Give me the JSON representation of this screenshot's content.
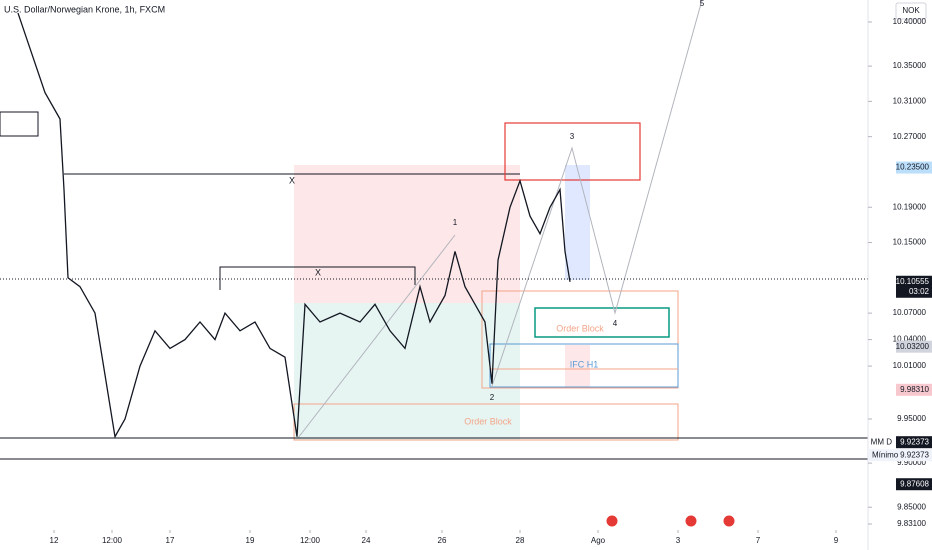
{
  "chart_data": {
    "type": "line",
    "title": "U.S. Dollar/Norwegian Krone, 1h, FXCM",
    "currency": "NOK",
    "color": "#131722",
    "x": [
      9,
      15,
      22.5,
      30,
      32,
      34,
      40,
      47.5,
      52.5,
      57.5,
      62.5,
      70,
      77.5,
      85,
      92.5,
      100,
      107.5,
      112.5,
      120,
      127.5,
      135,
      142.5,
      148.5,
      152.5,
      160,
      170,
      180,
      187.5,
      195,
      202.5,
      210,
      215,
      222.5,
      227.5,
      232.5,
      237.5,
      242.5,
      246,
      249,
      255,
      260,
      265,
      270,
      275,
      280,
      282.5,
      285
    ],
    "values": [
      10.41,
      10.37,
      10.32,
      10.29,
      10.21,
      10.11,
      10.1,
      10.07,
      10.0,
      9.93,
      9.95,
      10.01,
      10.05,
      10.03,
      10.04,
      10.06,
      10.04,
      10.07,
      10.05,
      10.06,
      10.03,
      10.02,
      9.93,
      10.08,
      10.06,
      10.07,
      10.06,
      10.08,
      10.05,
      10.03,
      10.1,
      10.06,
      10.09,
      10.14,
      10.1,
      10.08,
      10.06,
      9.99,
      10.13,
      10.19,
      10.22,
      10.18,
      10.16,
      10.19,
      10.21,
      10.14,
      10.10555
    ],
    "xlim": [
      0,
      434
    ],
    "ylim": [
      9.8242,
      10.4249
    ],
    "xticks": [
      {
        "value": 27,
        "label": "12"
      },
      {
        "value": 56,
        "label": "12:00"
      },
      {
        "value": 85,
        "label": "17"
      },
      {
        "value": 125,
        "label": "19"
      },
      {
        "value": 155,
        "label": "12:00"
      },
      {
        "value": 183,
        "label": "24"
      },
      {
        "value": 221,
        "label": "26"
      },
      {
        "value": 260,
        "label": "28"
      },
      {
        "value": 299,
        "label": "Ago"
      },
      {
        "value": 339,
        "label": "3"
      },
      {
        "value": 379,
        "label": "7"
      },
      {
        "value": 418,
        "label": "9"
      }
    ],
    "yticks": [
      {
        "value": 10.4,
        "label": "10.40000"
      },
      {
        "value": 10.35,
        "label": "10.35000"
      },
      {
        "value": 10.31,
        "label": "10.31000"
      },
      {
        "value": 10.27,
        "label": "10.27000"
      },
      {
        "value": 10.19,
        "label": "10.19000"
      },
      {
        "value": 10.15,
        "label": "10.15000"
      },
      {
        "value": 10.07,
        "label": "10.07000"
      },
      {
        "value": 10.04,
        "label": "10.04000"
      },
      {
        "value": 10.01,
        "label": "10.01000"
      },
      {
        "value": 9.95,
        "label": "9.95000"
      },
      {
        "value": 9.9,
        "label": "9.90000"
      },
      {
        "value": 9.85,
        "label": "9.85000"
      },
      {
        "value": 9.831,
        "label": "9.83100"
      }
    ],
    "price_labels": [
      {
        "value": 10.235,
        "label": "10.23500",
        "color": "#bbdefb",
        "text_color": "#131722"
      },
      {
        "value": 10.10555,
        "label": "10.10555",
        "sub": "03:02",
        "color": "#131722",
        "text_color": "#ffffff"
      },
      {
        "value": 10.032,
        "label": "10.03200",
        "color": "#d1d4dc",
        "text_color": "#131722"
      },
      {
        "value": 9.9831,
        "label": "9.98310",
        "color": "#f8c8cf",
        "text_color": "#131722"
      },
      {
        "value": 9.92373,
        "label": "9.92373",
        "tag": "MM D",
        "color": "#131722",
        "text_color": "#ffffff"
      },
      {
        "value": 9.87608,
        "label": "9.87608",
        "color": "#131722",
        "text_color": "#ffffff"
      }
    ],
    "min_label": {
      "name": "Mínimo",
      "label": "9.92373"
    },
    "annotations": [
      "X",
      "X",
      "1",
      "2",
      "3",
      "4",
      "5",
      "Order Block",
      "Order Block",
      "IFC H1"
    ]
  }
}
